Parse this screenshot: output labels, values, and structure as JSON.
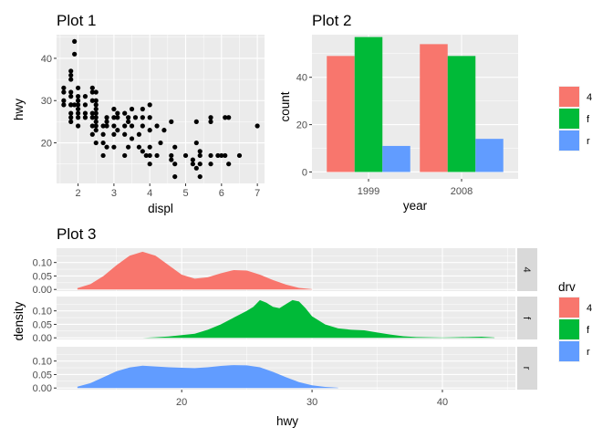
{
  "colors": {
    "4": "#F8766D",
    "f": "#00BA38",
    "r": "#619CFF",
    "panel": "#EBEBEB",
    "strip": "#D9D9D9"
  },
  "chart_data": [
    {
      "type": "scatter",
      "title": "Plot 1",
      "xlabel": "displ",
      "ylabel": "hwy",
      "xlim": [
        1.4,
        7.2
      ],
      "ylim": [
        10.4,
        45.6
      ],
      "xticks": [
        2,
        3,
        4,
        5,
        6,
        7
      ],
      "yticks": [
        20,
        30,
        40
      ],
      "grid": true,
      "points": [
        [
          1.6,
          33
        ],
        [
          1.6,
          32
        ],
        [
          1.6,
          30
        ],
        [
          1.6,
          29
        ],
        [
          1.8,
          29
        ],
        [
          1.8,
          29
        ],
        [
          1.8,
          31
        ],
        [
          1.8,
          35
        ],
        [
          1.8,
          37
        ],
        [
          1.8,
          36
        ],
        [
          1.8,
          32
        ],
        [
          1.8,
          26
        ],
        [
          1.8,
          25
        ],
        [
          1.8,
          27
        ],
        [
          1.9,
          44
        ],
        [
          1.9,
          41
        ],
        [
          1.9,
          29
        ],
        [
          2.0,
          31
        ],
        [
          2.0,
          30
        ],
        [
          2.0,
          28
        ],
        [
          2.0,
          26
        ],
        [
          2.0,
          33
        ],
        [
          2.0,
          29
        ],
        [
          2.0,
          24
        ],
        [
          2.0,
          27
        ],
        [
          2.2,
          26
        ],
        [
          2.2,
          27
        ],
        [
          2.2,
          29
        ],
        [
          2.2,
          31
        ],
        [
          2.4,
          27
        ],
        [
          2.4,
          30
        ],
        [
          2.4,
          33
        ],
        [
          2.4,
          32
        ],
        [
          2.4,
          26
        ],
        [
          2.4,
          24
        ],
        [
          2.4,
          22
        ],
        [
          2.5,
          29
        ],
        [
          2.5,
          26
        ],
        [
          2.5,
          24
        ],
        [
          2.5,
          23
        ],
        [
          2.5,
          25
        ],
        [
          2.5,
          27
        ],
        [
          2.5,
          28
        ],
        [
          2.5,
          30
        ],
        [
          2.5,
          32
        ],
        [
          2.5,
          20
        ],
        [
          2.7,
          24
        ],
        [
          2.7,
          22
        ],
        [
          2.7,
          20
        ],
        [
          2.7,
          17
        ],
        [
          2.8,
          26
        ],
        [
          2.8,
          25
        ],
        [
          2.8,
          24
        ],
        [
          2.8,
          19
        ],
        [
          3.0,
          24
        ],
        [
          3.0,
          26
        ],
        [
          3.0,
          28
        ],
        [
          3.0,
          22
        ],
        [
          3.0,
          19
        ],
        [
          3.1,
          27
        ],
        [
          3.1,
          26
        ],
        [
          3.1,
          23
        ],
        [
          3.3,
          24
        ],
        [
          3.3,
          22
        ],
        [
          3.3,
          17
        ],
        [
          3.3,
          27
        ],
        [
          3.4,
          26
        ],
        [
          3.4,
          25
        ],
        [
          3.4,
          19
        ],
        [
          3.5,
          28
        ],
        [
          3.5,
          24
        ],
        [
          3.5,
          21
        ],
        [
          3.6,
          26
        ],
        [
          3.7,
          22
        ],
        [
          3.7,
          19
        ],
        [
          3.8,
          28
        ],
        [
          3.8,
          26
        ],
        [
          3.8,
          24
        ],
        [
          3.8,
          18
        ],
        [
          3.9,
          17
        ],
        [
          4.0,
          26
        ],
        [
          4.0,
          29
        ],
        [
          4.0,
          23
        ],
        [
          4.0,
          19
        ],
        [
          4.0,
          17
        ],
        [
          4.0,
          15
        ],
        [
          4.2,
          24
        ],
        [
          4.2,
          17
        ],
        [
          4.3,
          20
        ],
        [
          4.4,
          23
        ],
        [
          4.6,
          25
        ],
        [
          4.6,
          17
        ],
        [
          4.6,
          16
        ],
        [
          4.7,
          19
        ],
        [
          4.7,
          15
        ],
        [
          4.7,
          12
        ],
        [
          5.0,
          17
        ],
        [
          5.2,
          15
        ],
        [
          5.2,
          16
        ],
        [
          5.3,
          25
        ],
        [
          5.3,
          20
        ],
        [
          5.3,
          14
        ],
        [
          5.4,
          17
        ],
        [
          5.4,
          15
        ],
        [
          5.4,
          12
        ],
        [
          5.4,
          18
        ],
        [
          5.7,
          26
        ],
        [
          5.7,
          25
        ],
        [
          5.7,
          17
        ],
        [
          5.7,
          15
        ],
        [
          5.9,
          17
        ],
        [
          6.0,
          17
        ],
        [
          6.1,
          26
        ],
        [
          6.1,
          17
        ],
        [
          6.2,
          26
        ],
        [
          6.2,
          15
        ],
        [
          6.5,
          17
        ],
        [
          7.0,
          24
        ]
      ]
    },
    {
      "type": "bar",
      "title": "Plot 2",
      "xlabel": "year",
      "ylabel": "count",
      "categories": [
        "1999",
        "2008"
      ],
      "ylim": [
        0,
        58
      ],
      "yticks": [
        0,
        20,
        40
      ],
      "grid": true,
      "series": [
        {
          "name": "4",
          "values": [
            49,
            54
          ]
        },
        {
          "name": "f",
          "values": [
            57,
            49
          ]
        },
        {
          "name": "r",
          "values": [
            11,
            14
          ]
        }
      ]
    },
    {
      "type": "area",
      "title": "Plot 3",
      "xlabel": "hwy",
      "ylabel": "density",
      "xlim": [
        10.4,
        45.6
      ],
      "ylim": [
        -0.006,
        0.153
      ],
      "xticks": [
        20,
        30,
        40
      ],
      "yticks": [
        0.0,
        0.05,
        0.1
      ],
      "ytick_labels": [
        "0.00",
        "0.05",
        "0.10"
      ],
      "grid": true,
      "facets": [
        {
          "name": "4",
          "x": [
            12,
            13,
            14,
            15,
            16,
            17,
            18,
            19,
            20,
            21,
            22,
            23,
            24,
            25,
            26,
            27,
            28,
            29,
            30
          ],
          "y": [
            0.005,
            0.02,
            0.05,
            0.09,
            0.125,
            0.14,
            0.125,
            0.09,
            0.055,
            0.04,
            0.045,
            0.06,
            0.072,
            0.07,
            0.055,
            0.035,
            0.018,
            0.006,
            0.001
          ]
        },
        {
          "name": "f",
          "x": [
            17,
            18,
            19,
            20,
            21,
            22,
            23,
            24,
            25,
            25.5,
            26,
            26.5,
            27,
            27.5,
            28,
            28.5,
            29,
            29.5,
            30,
            31,
            32,
            33,
            34,
            35,
            36,
            37,
            38,
            39,
            40,
            41,
            42,
            43,
            44
          ],
          "y": [
            0.0,
            0.002,
            0.005,
            0.01,
            0.015,
            0.03,
            0.05,
            0.075,
            0.1,
            0.115,
            0.14,
            0.13,
            0.115,
            0.11,
            0.125,
            0.14,
            0.135,
            0.11,
            0.08,
            0.05,
            0.035,
            0.03,
            0.028,
            0.02,
            0.012,
            0.006,
            0.003,
            0.002,
            0.001,
            0.002,
            0.003,
            0.004,
            0.001
          ]
        },
        {
          "name": "r",
          "x": [
            12,
            13,
            14,
            15,
            16,
            17,
            18,
            19,
            20,
            21,
            22,
            23,
            24,
            25,
            26,
            27,
            28,
            29,
            30,
            31,
            32
          ],
          "y": [
            0.005,
            0.018,
            0.04,
            0.062,
            0.076,
            0.083,
            0.08,
            0.077,
            0.075,
            0.074,
            0.077,
            0.082,
            0.085,
            0.084,
            0.077,
            0.06,
            0.04,
            0.022,
            0.01,
            0.004,
            0.001
          ]
        }
      ]
    }
  ],
  "legend": {
    "title": "drv",
    "items": [
      "4",
      "f",
      "r"
    ]
  }
}
